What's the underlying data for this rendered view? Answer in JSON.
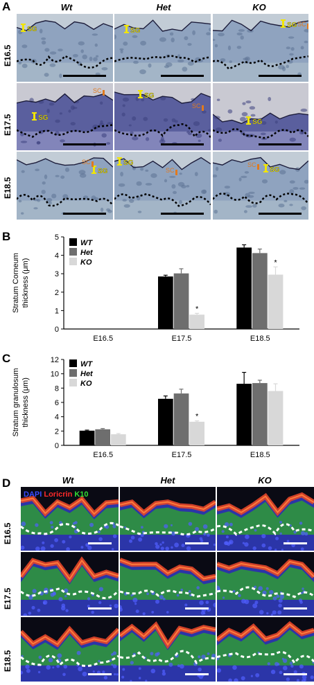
{
  "panelA": {
    "letter": "A",
    "columns": [
      "Wt",
      "Het",
      "KO"
    ],
    "rows": [
      "E16.5",
      "E17.5",
      "E18.5"
    ],
    "sg_label": "SG",
    "sc_label": "SC"
  },
  "panelB": {
    "letter": "B",
    "ylabel_line1": "Stratum  Corneum",
    "ylabel_line2": "thickness (μm)"
  },
  "panelC": {
    "letter": "C",
    "ylabel_line1": "Stratum granulosum",
    "ylabel_line2": "thickness (μm)"
  },
  "panelD": {
    "letter": "D",
    "columns": [
      "Wt",
      "Het",
      "KO"
    ],
    "rows": [
      "E16.5",
      "E17.5",
      "E18.5"
    ],
    "stain_dapi": "DAPI",
    "stain_loricrin": "Loricrin",
    "stain_k10": "K10"
  },
  "colors": {
    "wt": "#000000",
    "het": "#6e6e6e",
    "ko": "#d8d8d8",
    "sg_marker": "#f2e600",
    "sc_marker": "#e07a1f",
    "histo_bg": "#a9bccb",
    "if_bg": "#0a0a14"
  },
  "chart_data": [
    {
      "type": "bar",
      "categories": [
        "E16.5",
        "E17.5",
        "E18.5"
      ],
      "ylabel": "Stratum  Corneum thickness (μm)",
      "ylim": [
        0,
        5
      ],
      "yticks": [
        0,
        1,
        2,
        3,
        4,
        5
      ],
      "legend": "top-left",
      "significance": [
        {
          "category": "E17.5",
          "series": "KO",
          "mark": "*"
        },
        {
          "category": "E18.5",
          "series": "KO",
          "mark": "*"
        }
      ],
      "series": [
        {
          "name": "WT",
          "values": [
            0,
            2.85,
            4.42
          ],
          "errors": [
            0,
            0.07,
            0.15
          ]
        },
        {
          "name": "Het",
          "values": [
            0,
            3.02,
            4.12
          ],
          "errors": [
            0,
            0.25,
            0.22
          ]
        },
        {
          "name": "KO",
          "values": [
            0,
            0.78,
            2.95
          ],
          "errors": [
            0,
            0.07,
            0.42
          ]
        }
      ]
    },
    {
      "type": "bar",
      "categories": [
        "E16.5",
        "E17.5",
        "E18.5"
      ],
      "ylabel": "Stratum granulosum thickness (μm)",
      "ylim": [
        0,
        12
      ],
      "yticks": [
        0,
        2,
        4,
        6,
        8,
        10,
        12
      ],
      "legend": "top-left",
      "significance": [
        {
          "category": "E17.5",
          "series": "KO",
          "mark": "*"
        }
      ],
      "series": [
        {
          "name": "WT",
          "values": [
            2.05,
            6.5,
            8.6
          ],
          "errors": [
            0.08,
            0.4,
            1.6
          ]
        },
        {
          "name": "Het",
          "values": [
            2.25,
            7.25,
            8.7
          ],
          "errors": [
            0.1,
            0.6,
            0.4
          ]
        },
        {
          "name": "KO",
          "values": [
            1.55,
            3.3,
            7.6
          ],
          "errors": [
            0.1,
            0.12,
            1.0
          ]
        }
      ]
    }
  ]
}
